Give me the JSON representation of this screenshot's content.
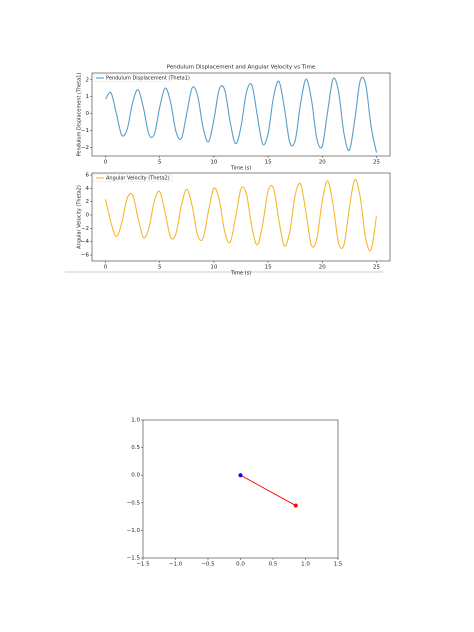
{
  "chart_data": [
    {
      "type": "line",
      "title": "Pendulum Displacement and Angular Velocity vs Time",
      "xlabel": "Time (s)",
      "ylabel": "Pendulum Displacement (Theta1)",
      "x": [
        0,
        0.5,
        1,
        1.5,
        2,
        2.5,
        3,
        3.5,
        4,
        4.5,
        5,
        5.5,
        6,
        6.5,
        7,
        7.5,
        8,
        8.5,
        9,
        9.5,
        10,
        10.5,
        11,
        11.5,
        12,
        12.5,
        13,
        13.5,
        14,
        14.5,
        15,
        15.5,
        16,
        16.5,
        17,
        17.5,
        18,
        18.5,
        19,
        19.5,
        20,
        20.5,
        21,
        21.5,
        22,
        22.5,
        23,
        23.5,
        24,
        24.5,
        25
      ],
      "series": [
        {
          "name": "Pendulum Displacement (Theta1)",
          "color": "#5b9ec9",
          "values": [
            0.86,
            1.23,
            0.0,
            -1.27,
            -0.91,
            0.66,
            1.41,
            0.33,
            -1.21,
            -1.21,
            0.38,
            1.51,
            0.69,
            -1.06,
            -1.46,
            0.04,
            1.53,
            1.05,
            -0.82,
            -1.66,
            -0.35,
            1.45,
            1.39,
            -0.49,
            -1.77,
            -0.77,
            1.26,
            1.69,
            -0.09,
            -1.79,
            -1.18,
            0.98,
            1.91,
            0.36,
            -1.69,
            -1.58,
            0.6,
            2.04,
            0.84,
            -1.48,
            -1.91,
            0.15,
            2.05,
            1.31,
            -1.16,
            -2.16,
            -0.36,
            1.94,
            1.75,
            -0.73,
            -2.3
          ]
        }
      ],
      "xlim": [
        -1.25,
        26.25
      ],
      "xticks": [
        0,
        5,
        10,
        15,
        20,
        25
      ],
      "ylim": [
        -2.5,
        2.4
      ],
      "yticks": [
        {
          "value": -2,
          "label": "−2"
        },
        {
          "value": -1,
          "label": "−1"
        },
        0,
        1,
        2
      ],
      "legend": "upper left"
    },
    {
      "type": "line",
      "xlabel": "Time (s)",
      "ylabel": "Angular Velocity (Theta2)",
      "x": [
        0,
        0.5,
        1,
        1.5,
        2,
        2.5,
        3,
        3.5,
        4,
        4.5,
        5,
        5.5,
        6,
        6.5,
        7,
        7.5,
        8,
        8.5,
        9,
        9.5,
        10,
        10.5,
        11,
        11.5,
        12,
        12.5,
        13,
        13.5,
        14,
        14.5,
        15,
        15.5,
        16,
        16.5,
        17,
        17.5,
        18,
        18.5,
        19,
        19.5,
        20,
        20.5,
        21,
        21.5,
        22,
        22.5,
        23,
        23.5,
        24,
        24.5,
        25
      ],
      "series": [
        {
          "name": "Angular Velocity (Theta2)",
          "color": "#f5b82e",
          "values": [
            2.36,
            -1.13,
            -3.24,
            -1.15,
            2.52,
            2.99,
            -0.45,
            -3.39,
            -1.97,
            2.08,
            3.51,
            0.38,
            -3.33,
            -2.77,
            1.44,
            3.87,
            1.29,
            -3.04,
            -3.5,
            0.62,
            4.02,
            2.24,
            -2.52,
            -4.09,
            -0.34,
            3.93,
            3.17,
            -1.77,
            -4.5,
            -1.4,
            3.6,
            4.0,
            -0.82,
            -4.66,
            -2.49,
            2.97,
            4.67,
            0.29,
            -4.56,
            -3.54,
            2.11,
            5.12,
            1.49,
            -4.16,
            -4.47,
            1.04,
            5.3,
            2.72,
            -3.47,
            -5.22,
            -0.2
          ]
        }
      ],
      "xlim": [
        -1.25,
        26.25
      ],
      "xticks": [
        0,
        5,
        10,
        15,
        20,
        25
      ],
      "ylim": [
        -6.9,
        6.3
      ],
      "yticks": [
        {
          "value": -6,
          "label": "−6"
        },
        {
          "value": -4,
          "label": "−4"
        },
        {
          "value": -2,
          "label": "−2"
        },
        0,
        2,
        4,
        6
      ],
      "legend": "upper left"
    },
    {
      "type": "scatter",
      "x": [
        0,
        0.85
      ],
      "values": [
        0,
        -0.55
      ],
      "colors": [
        "#0000ff",
        "#ff0000"
      ],
      "line_color": "#ff0000",
      "xlim": [
        -1.5,
        1.5
      ],
      "xticks": [
        {
          "value": -1.5,
          "label": "−1.5"
        },
        {
          "value": -1,
          "label": "−1.0"
        },
        {
          "value": -0.5,
          "label": "−0.5"
        },
        {
          "value": 0,
          "label": "0.0"
        },
        {
          "value": 0.5,
          "label": "0.5"
        },
        {
          "value": 1,
          "label": "1.0"
        },
        {
          "value": 1.5,
          "label": "1.5"
        }
      ],
      "ylim": [
        -1.5,
        1
      ],
      "yticks": [
        {
          "value": -1.5,
          "label": "−1.5"
        },
        {
          "value": -1,
          "label": "−1.0"
        },
        {
          "value": -0.5,
          "label": "−0.5"
        },
        {
          "value": 0,
          "label": "0.0"
        },
        {
          "value": 0.5,
          "label": "0.5"
        },
        {
          "value": 1,
          "label": "1.0"
        }
      ]
    }
  ]
}
